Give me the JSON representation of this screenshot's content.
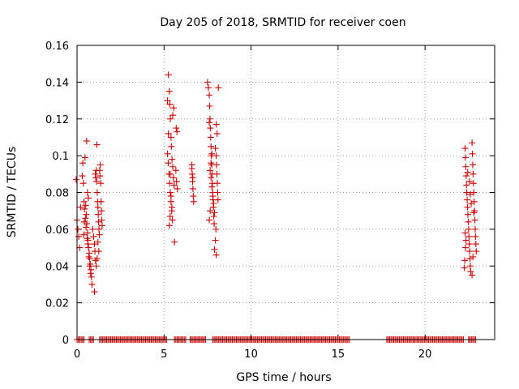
{
  "chart_data": {
    "type": "scatter",
    "title": "Day 205 of 2018, SRMTID for receiver coen",
    "xlabel": "GPS time / hours",
    "ylabel": "SRMTID / TECUs",
    "xlim": [
      0,
      24
    ],
    "ylim": [
      0,
      0.16
    ],
    "xticks": [
      0,
      5,
      10,
      15,
      20
    ],
    "xtick_labels": [
      "0",
      "5",
      "10",
      "15",
      "20"
    ],
    "yticks": [
      0,
      0.02,
      0.04,
      0.06,
      0.08,
      0.1,
      0.12,
      0.14,
      0.16
    ],
    "ytick_labels": [
      "0",
      "0.02",
      "0.04",
      "0.06",
      "0.08",
      "0.1",
      "0.12",
      "0.14",
      "0.16"
    ],
    "grid": true,
    "marker": "+",
    "marker_color": "#d00000",
    "series": [
      {
        "name": "SRMTID",
        "points": [
          [
            -0.05,
            0.087
          ],
          [
            0.0,
            0.065
          ],
          [
            0.05,
            0.06
          ],
          [
            0.1,
            0.056
          ],
          [
            0.15,
            0.05
          ],
          [
            0.2,
            0.072
          ],
          [
            0.3,
            0.089
          ],
          [
            0.33,
            0.096
          ],
          [
            0.36,
            0.085
          ],
          [
            0.4,
            0.075
          ],
          [
            0.43,
            0.071
          ],
          [
            0.46,
            0.099
          ],
          [
            0.5,
            0.073
          ],
          [
            0.53,
            0.068
          ],
          [
            0.56,
            0.063
          ],
          [
            0.6,
            0.058
          ],
          [
            0.63,
            0.054
          ],
          [
            0.66,
            0.05
          ],
          [
            0.7,
            0.047
          ],
          [
            0.73,
            0.044
          ],
          [
            0.76,
            0.041
          ],
          [
            0.8,
            0.038
          ],
          [
            0.83,
            0.034
          ],
          [
            0.86,
            0.03
          ],
          [
            0.55,
            0.108
          ],
          [
            0.6,
            0.08
          ],
          [
            0.65,
            0.077
          ],
          [
            0.48,
            0.066
          ],
          [
            0.52,
            0.061
          ],
          [
            0.58,
            0.055
          ],
          [
            0.62,
            0.052
          ],
          [
            0.68,
            0.045
          ],
          [
            0.72,
            0.04
          ],
          [
            0.78,
            0.036
          ],
          [
            0.42,
            0.064
          ],
          [
            0.38,
            0.057
          ],
          [
            0.9,
            0.06
          ],
          [
            0.95,
            0.056
          ],
          [
            1.0,
            0.052
          ],
          [
            1.03,
            0.048
          ],
          [
            1.06,
            0.043
          ],
          [
            1.0,
            0.026
          ],
          [
            1.05,
            0.09
          ],
          [
            1.08,
            0.088
          ],
          [
            1.1,
            0.092
          ],
          [
            1.12,
            0.086
          ],
          [
            1.14,
            0.106
          ],
          [
            1.16,
            0.08
          ],
          [
            1.18,
            0.075
          ],
          [
            1.2,
            0.072
          ],
          [
            1.22,
            0.068
          ],
          [
            1.24,
            0.064
          ],
          [
            1.26,
            0.06
          ],
          [
            1.28,
            0.057
          ],
          [
            1.3,
            0.092
          ],
          [
            1.32,
            0.089
          ],
          [
            1.34,
            0.095
          ],
          [
            1.36,
            0.085
          ],
          [
            1.38,
            0.075
          ],
          [
            1.4,
            0.07
          ],
          [
            1.42,
            0.065
          ],
          [
            1.44,
            0.062
          ],
          [
            1.2,
            0.053
          ],
          [
            1.25,
            0.048
          ],
          [
            1.15,
            0.044
          ],
          [
            1.1,
            0.04
          ],
          [
            5.2,
            0.13
          ],
          [
            5.25,
            0.144
          ],
          [
            5.3,
            0.135
          ],
          [
            5.33,
            0.128
          ],
          [
            5.36,
            0.12
          ],
          [
            5.4,
            0.11
          ],
          [
            5.2,
            0.101
          ],
          [
            5.24,
            0.096
          ],
          [
            5.28,
            0.09
          ],
          [
            5.32,
            0.085
          ],
          [
            5.36,
            0.08
          ],
          [
            5.4,
            0.075
          ],
          [
            5.44,
            0.07
          ],
          [
            5.48,
            0.065
          ],
          [
            5.3,
            0.062
          ],
          [
            5.35,
            0.067
          ],
          [
            5.42,
            0.105
          ],
          [
            5.46,
            0.098
          ],
          [
            5.5,
            0.094
          ],
          [
            5.54,
            0.088
          ],
          [
            5.58,
            0.084
          ],
          [
            5.5,
            0.122
          ],
          [
            5.55,
            0.126
          ],
          [
            5.6,
            0.053
          ],
          [
            5.4,
            0.078
          ],
          [
            5.45,
            0.072
          ],
          [
            5.25,
            0.112
          ],
          [
            5.35,
            0.09
          ],
          [
            5.7,
            0.115
          ],
          [
            5.74,
            0.113
          ],
          [
            5.68,
            0.092
          ],
          [
            5.72,
            0.086
          ],
          [
            5.76,
            0.082
          ],
          [
            6.6,
            0.095
          ],
          [
            6.62,
            0.09
          ],
          [
            6.64,
            0.086
          ],
          [
            6.66,
            0.082
          ],
          [
            6.68,
            0.078
          ],
          [
            6.7,
            0.075
          ],
          [
            6.6,
            0.093
          ],
          [
            6.65,
            0.088
          ],
          [
            7.5,
            0.14
          ],
          [
            7.55,
            0.137
          ],
          [
            7.6,
            0.133
          ],
          [
            7.62,
            0.127
          ],
          [
            7.64,
            0.12
          ],
          [
            7.66,
            0.115
          ],
          [
            7.68,
            0.11
          ],
          [
            7.7,
            0.105
          ],
          [
            7.72,
            0.1
          ],
          [
            7.74,
            0.095
          ],
          [
            7.76,
            0.09
          ],
          [
            7.78,
            0.085
          ],
          [
            7.8,
            0.08
          ],
          [
            7.82,
            0.076
          ],
          [
            7.84,
            0.072
          ],
          [
            7.86,
            0.067
          ],
          [
            7.88,
            0.063
          ],
          [
            7.6,
            0.118
          ],
          [
            7.65,
            0.092
          ],
          [
            7.7,
            0.088
          ],
          [
            7.75,
            0.083
          ],
          [
            7.8,
            0.078
          ],
          [
            7.85,
            0.074
          ],
          [
            7.9,
            0.069
          ],
          [
            7.95,
            0.104
          ],
          [
            8.0,
            0.1
          ],
          [
            8.02,
            0.095
          ],
          [
            8.04,
            0.09
          ],
          [
            8.06,
            0.085
          ],
          [
            8.08,
            0.08
          ],
          [
            8.1,
            0.076
          ],
          [
            8.12,
            0.137
          ],
          [
            8.0,
            0.117
          ],
          [
            8.05,
            0.112
          ],
          [
            7.98,
            0.06
          ],
          [
            7.95,
            0.054
          ],
          [
            7.9,
            0.049
          ],
          [
            8.0,
            0.046
          ],
          [
            7.7,
            0.096
          ],
          [
            7.75,
            0.101
          ],
          [
            7.6,
            0.065
          ],
          [
            7.65,
            0.07
          ],
          [
            22.3,
            0.104
          ],
          [
            22.32,
            0.099
          ],
          [
            22.34,
            0.094
          ],
          [
            22.36,
            0.089
          ],
          [
            22.38,
            0.084
          ],
          [
            22.4,
            0.08
          ],
          [
            22.42,
            0.076
          ],
          [
            22.44,
            0.072
          ],
          [
            22.46,
            0.068
          ],
          [
            22.48,
            0.064
          ],
          [
            22.5,
            0.06
          ],
          [
            22.52,
            0.056
          ],
          [
            22.54,
            0.052
          ],
          [
            22.56,
            0.048
          ],
          [
            22.58,
            0.044
          ],
          [
            22.6,
            0.04
          ],
          [
            22.62,
            0.037
          ],
          [
            22.3,
            0.058
          ],
          [
            22.35,
            0.054
          ],
          [
            22.32,
            0.05
          ],
          [
            22.28,
            0.043
          ],
          [
            22.26,
            0.039
          ],
          [
            22.7,
            0.107
          ],
          [
            22.72,
            0.101
          ],
          [
            22.74,
            0.095
          ],
          [
            22.76,
            0.09
          ],
          [
            22.78,
            0.085
          ],
          [
            22.8,
            0.08
          ],
          [
            22.82,
            0.075
          ],
          [
            22.84,
            0.07
          ],
          [
            22.86,
            0.065
          ],
          [
            22.88,
            0.06
          ],
          [
            22.9,
            0.056
          ],
          [
            22.92,
            0.052
          ],
          [
            22.94,
            0.048
          ],
          [
            22.7,
            0.035
          ],
          [
            22.75,
            0.045
          ],
          [
            22.8,
            0.069
          ],
          [
            22.6,
            0.079
          ],
          [
            22.65,
            0.074
          ],
          [
            22.55,
            0.086
          ],
          [
            22.45,
            0.091
          ]
        ]
      }
    ],
    "zero_bands": [
      [
        0.0,
        0.4
      ],
      [
        0.7,
        1.0
      ],
      [
        1.3,
        5.2
      ],
      [
        5.6,
        6.3
      ],
      [
        6.5,
        7.4
      ],
      [
        7.8,
        15.7
      ],
      [
        17.8,
        22.2
      ],
      [
        22.5,
        22.9
      ]
    ]
  }
}
